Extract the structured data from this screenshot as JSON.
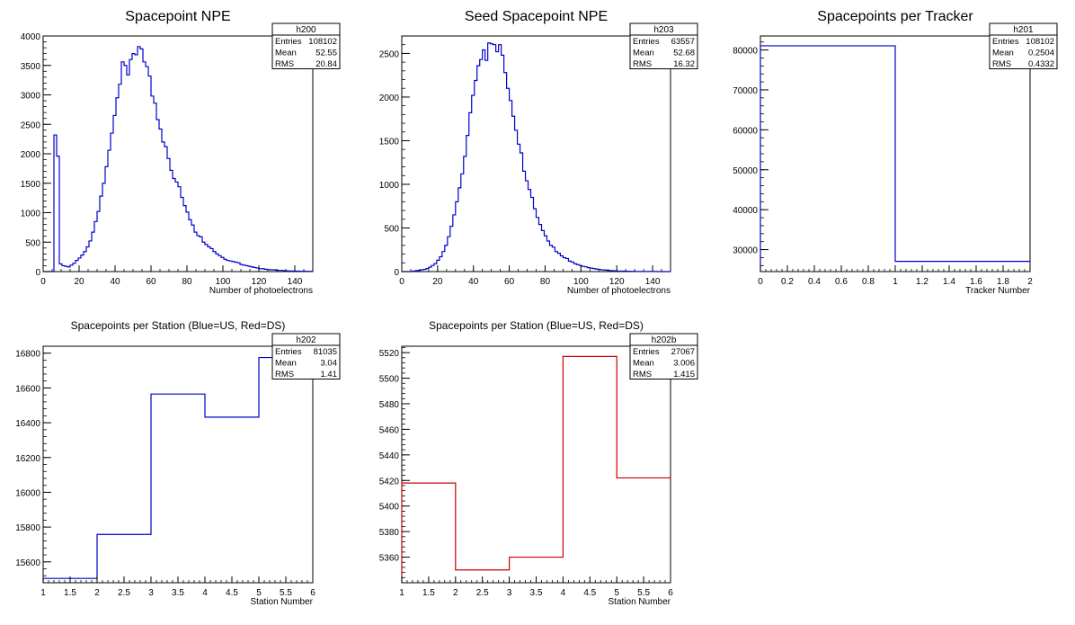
{
  "page": {
    "background": "#ffffff"
  },
  "chart_data": [
    {
      "id": "h200",
      "type": "histogram",
      "title": "Spacepoint NPE",
      "xlabel": "Number of photoelectrons",
      "ylabel": "",
      "xlim": [
        0,
        150
      ],
      "ylim": [
        0,
        4000
      ],
      "xticks": [
        0,
        20,
        40,
        60,
        80,
        100,
        120,
        140
      ],
      "yticks": [
        0,
        500,
        1000,
        1500,
        2000,
        2500,
        3000,
        3500,
        4000
      ],
      "line_color": "#0000cc",
      "bin_width": 1.5,
      "values": [
        0,
        0,
        0,
        0,
        2320,
        1960,
        130,
        100,
        90,
        80,
        110,
        140,
        190,
        230,
        280,
        340,
        420,
        520,
        670,
        850,
        1020,
        1280,
        1500,
        1780,
        2060,
        2350,
        2650,
        2950,
        3180,
        3560,
        3500,
        3340,
        3600,
        3700,
        3680,
        3820,
        3780,
        3560,
        3480,
        3320,
        2980,
        2860,
        2580,
        2420,
        2200,
        2120,
        1920,
        1720,
        1580,
        1520,
        1440,
        1260,
        1120,
        1010,
        880,
        790,
        670,
        610,
        590,
        500,
        460,
        420,
        390,
        340,
        300,
        270,
        240,
        210,
        190,
        180,
        170,
        160,
        150,
        120,
        110,
        100,
        90,
        80,
        70,
        60,
        50,
        50,
        40,
        35,
        30,
        30,
        25,
        20,
        20,
        15,
        12,
        10,
        10,
        8,
        8,
        6,
        6,
        5,
        5,
        4
      ],
      "stats": {
        "name": "h200",
        "rows": [
          {
            "label": "Entries",
            "value": "108102"
          },
          {
            "label": "Mean",
            "value": "52.55"
          },
          {
            "label": "RMS",
            "value": "20.84"
          }
        ]
      }
    },
    {
      "id": "h203",
      "type": "histogram",
      "title": "Seed Spacepoint NPE",
      "xlabel": "Number of photoelectrons",
      "ylabel": "",
      "xlim": [
        0,
        150
      ],
      "ylim": [
        0,
        2700
      ],
      "xticks": [
        0,
        20,
        40,
        60,
        80,
        100,
        120,
        140
      ],
      "yticks": [
        0,
        500,
        1000,
        1500,
        2000,
        2500
      ],
      "line_color": "#0000cc",
      "bin_width": 1.5,
      "values": [
        0,
        0,
        0,
        0,
        5,
        10,
        15,
        20,
        25,
        35,
        50,
        70,
        90,
        130,
        170,
        230,
        300,
        400,
        520,
        650,
        800,
        960,
        1120,
        1320,
        1560,
        1820,
        2020,
        2190,
        2360,
        2430,
        2540,
        2420,
        2620,
        2610,
        2600,
        2520,
        2600,
        2480,
        2280,
        2100,
        1960,
        1780,
        1620,
        1460,
        1360,
        1150,
        1040,
        940,
        850,
        720,
        620,
        540,
        470,
        410,
        350,
        300,
        280,
        230,
        210,
        180,
        160,
        150,
        120,
        110,
        90,
        80,
        70,
        60,
        55,
        45,
        40,
        35,
        30,
        25,
        20,
        18,
        15,
        12,
        10,
        8,
        6,
        5,
        5,
        4,
        4,
        3,
        3,
        2,
        2,
        2,
        2,
        1,
        1,
        1,
        1,
        0,
        0,
        0,
        0,
        0
      ],
      "stats": {
        "name": "h203",
        "rows": [
          {
            "label": "Entries",
            "value": "63557"
          },
          {
            "label": "Mean",
            "value": "52.68"
          },
          {
            "label": "RMS",
            "value": "16.32"
          }
        ]
      }
    },
    {
      "id": "h201",
      "type": "histogram",
      "title": "Spacepoints per Tracker",
      "xlabel": "Tracker Number",
      "ylabel": "",
      "xlim": [
        0,
        2
      ],
      "ylim": [
        24500,
        83500
      ],
      "xticks": [
        0,
        0.2,
        0.4,
        0.6,
        0.8,
        1,
        1.2,
        1.4,
        1.6,
        1.8,
        2
      ],
      "yticks": [
        30000,
        40000,
        50000,
        60000,
        70000,
        80000
      ],
      "line_color": "#0000cc",
      "bin_edges": [
        0,
        1,
        2
      ],
      "values": [
        81035,
        27067
      ],
      "stats": {
        "name": "h201",
        "rows": [
          {
            "label": "Entries",
            "value": "108102"
          },
          {
            "label": "Mean",
            "value": "0.2504"
          },
          {
            "label": "RMS",
            "value": "0.4332"
          }
        ]
      }
    },
    {
      "id": "h202",
      "type": "histogram",
      "title": "Spacepoints per Station (Blue=US, Red=DS)",
      "xlabel": "Station Number",
      "ylabel": "",
      "xlim": [
        1,
        6
      ],
      "ylim": [
        15480,
        16840
      ],
      "xticks": [
        1,
        1.5,
        2,
        2.5,
        3,
        3.5,
        4,
        4.5,
        5,
        5.5,
        6
      ],
      "yticks": [
        15600,
        15800,
        16000,
        16200,
        16400,
        16600,
        16800
      ],
      "line_color": "#0000cc",
      "bin_edges": [
        1,
        2,
        3,
        4,
        5,
        6
      ],
      "values": [
        15505,
        15758,
        16565,
        16432,
        16775
      ],
      "stats": {
        "name": "h202",
        "rows": [
          {
            "label": "Entries",
            "value": "81035"
          },
          {
            "label": "Mean",
            "value": "3.04"
          },
          {
            "label": "RMS",
            "value": "1.41"
          }
        ]
      }
    },
    {
      "id": "h202b",
      "type": "histogram",
      "title": "Spacepoints per Station (Blue=US, Red=DS)",
      "xlabel": "Station Number",
      "ylabel": "",
      "xlim": [
        1,
        6
      ],
      "ylim": [
        5340,
        5525
      ],
      "xticks": [
        1,
        1.5,
        2,
        2.5,
        3,
        3.5,
        4,
        4.5,
        5,
        5.5,
        6
      ],
      "yticks": [
        5360,
        5380,
        5400,
        5420,
        5440,
        5460,
        5480,
        5500,
        5520
      ],
      "line_color": "#cc0000",
      "bin_edges": [
        1,
        2,
        3,
        4,
        5,
        6
      ],
      "values": [
        5418,
        5350,
        5360,
        5517,
        5422
      ],
      "stats": {
        "name": "h202b",
        "rows": [
          {
            "label": "Entries",
            "value": "27067"
          },
          {
            "label": "Mean",
            "value": "3.006"
          },
          {
            "label": "RMS",
            "value": "1.415"
          }
        ]
      }
    }
  ]
}
